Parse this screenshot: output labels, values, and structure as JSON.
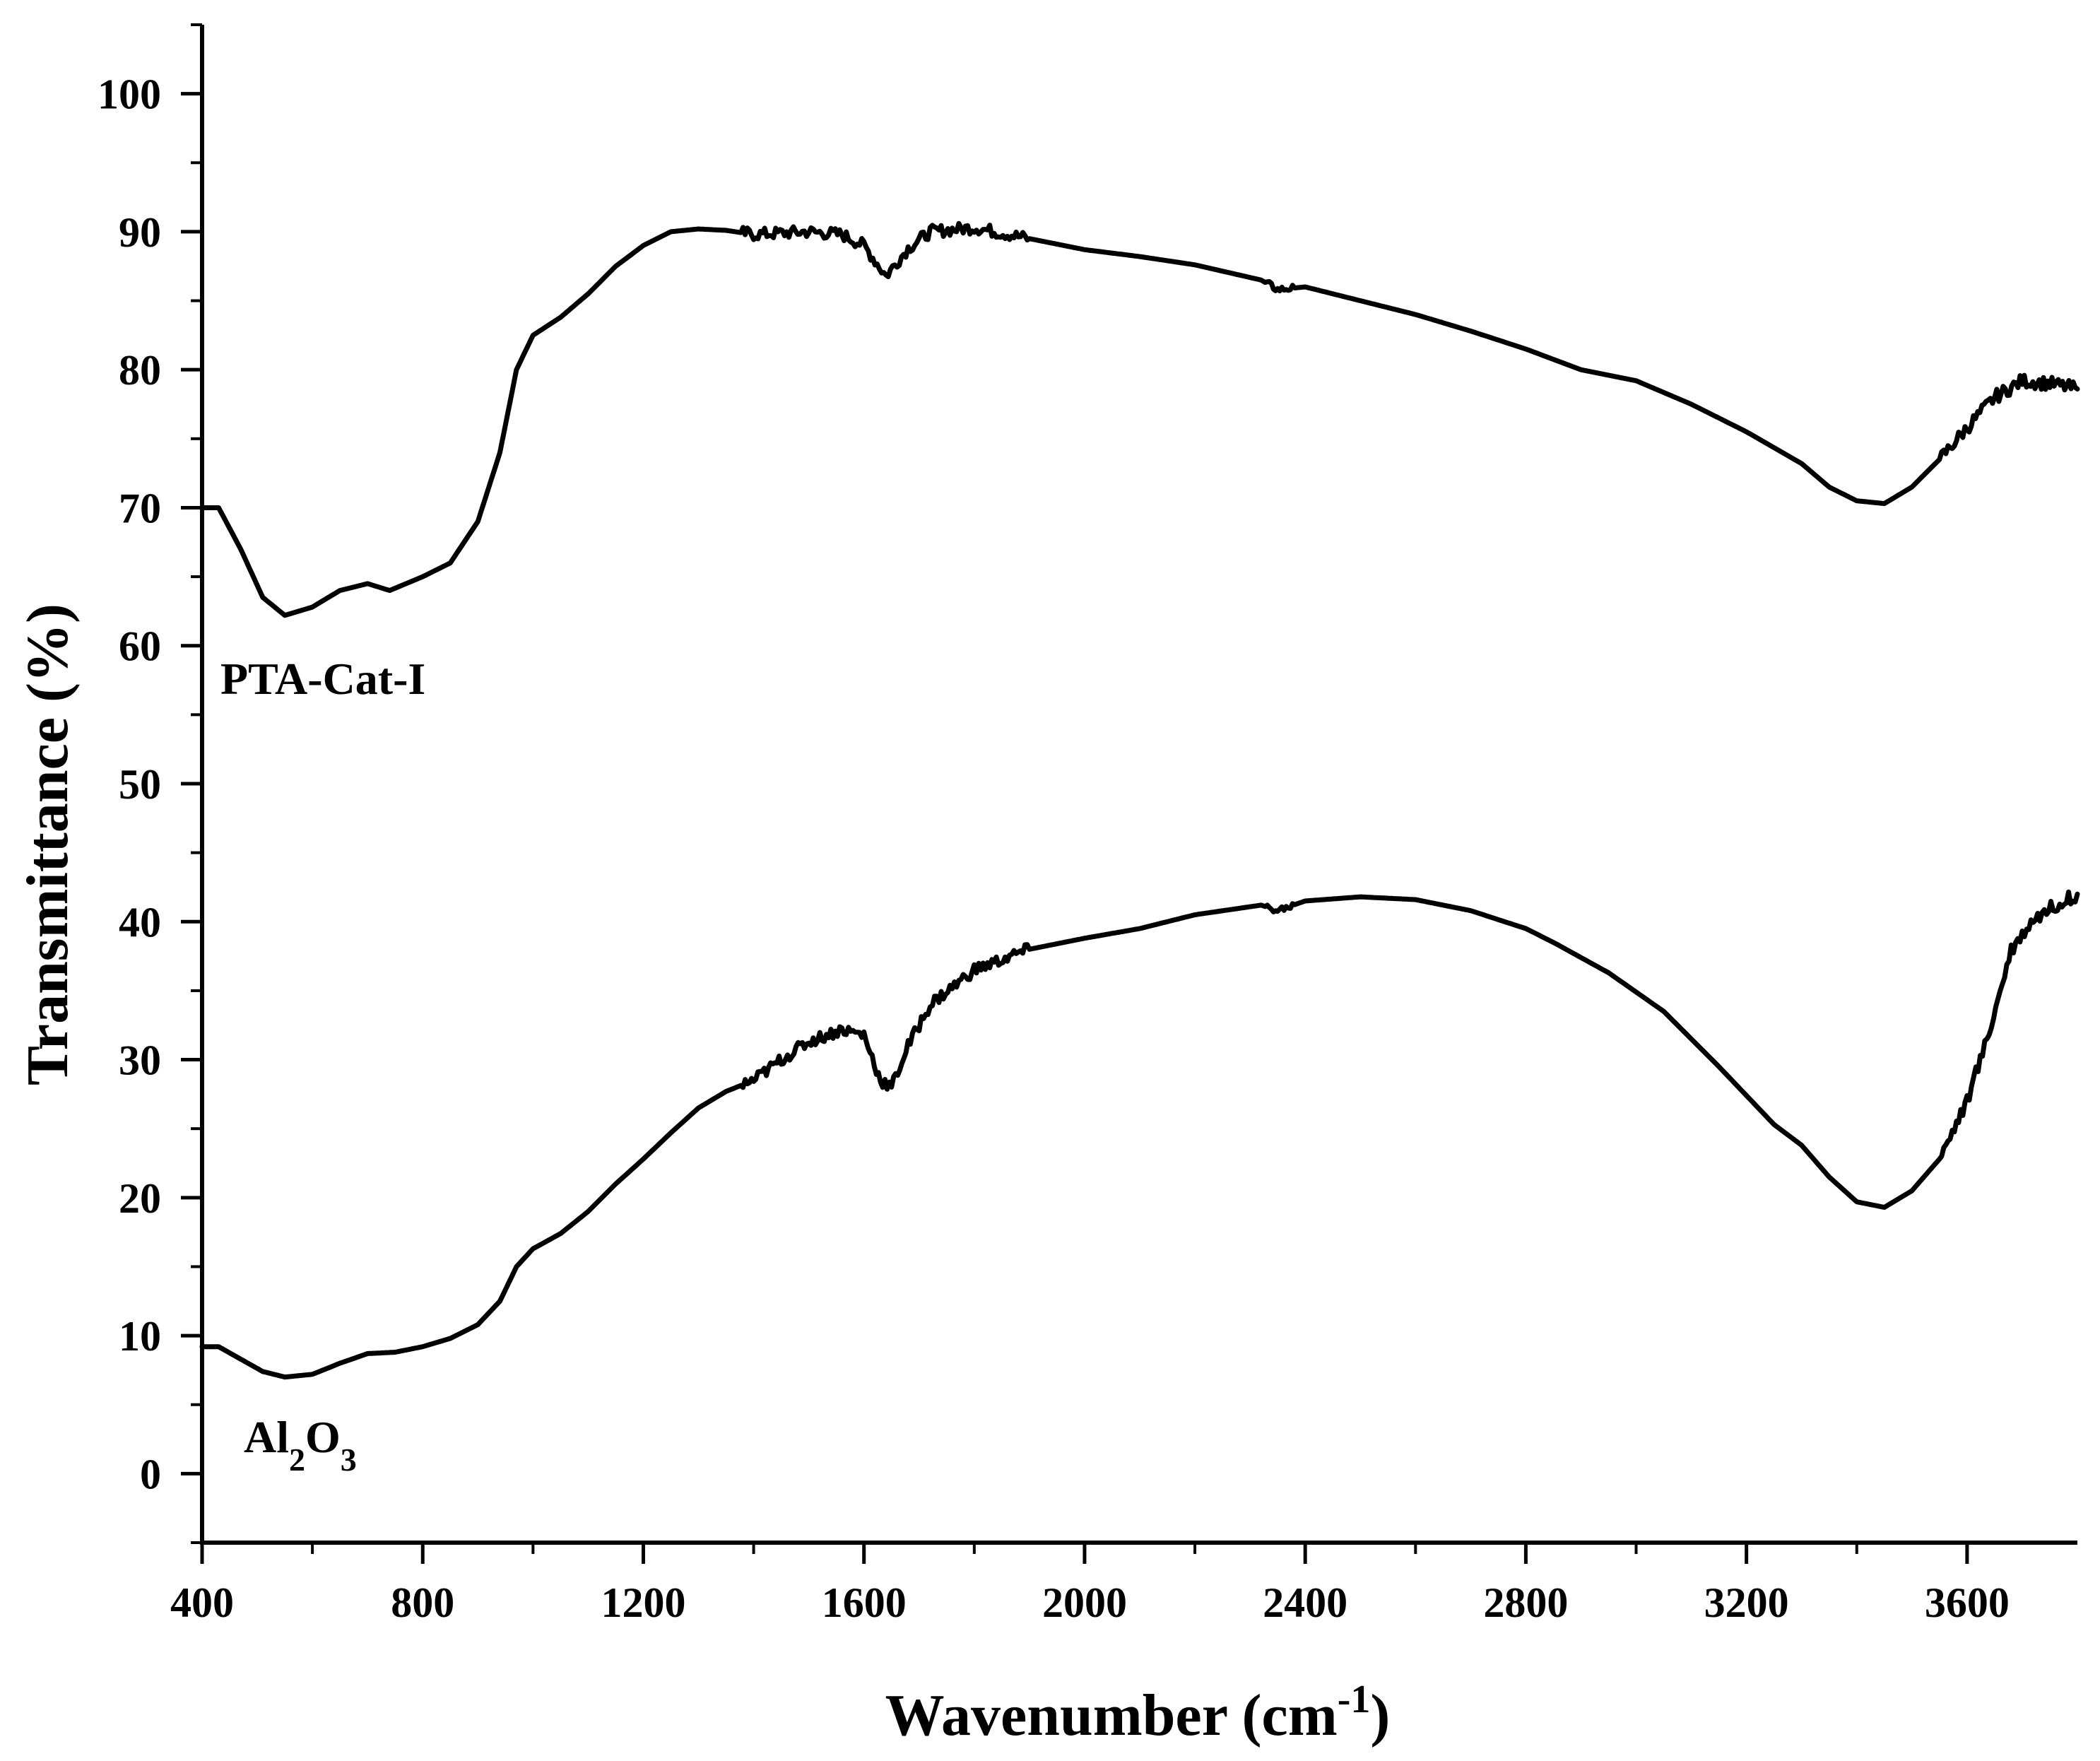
{
  "chart_data": {
    "type": "line",
    "title": "",
    "xlabel": "Wavenumber (cm",
    "xlabel_sup": "-1",
    "xlabel_end": ")",
    "ylabel": "Transmittance (%)",
    "xlim": [
      400,
      3800
    ],
    "ylim": [
      -5,
      105
    ],
    "xticks": [
      400,
      800,
      1200,
      1600,
      2000,
      2400,
      2800,
      3200,
      3600
    ],
    "xtick_labels": [
      "400",
      "800",
      "1200",
      "1600",
      "2000",
      "2400",
      "2800",
      "3200",
      "3600"
    ],
    "yticks": [
      0,
      10,
      20,
      30,
      40,
      50,
      60,
      70,
      80,
      90,
      100
    ],
    "ytick_labels": [
      "0",
      "10",
      "20",
      "30",
      "40",
      "50",
      "60",
      "70",
      "80",
      "90",
      "100"
    ],
    "grid": false,
    "legend": "none",
    "series": [
      {
        "name": "PTA-Cat-I",
        "label": "PTA-Cat-I",
        "color": "#000000",
        "points": [
          [
            400,
            70
          ],
          [
            430,
            70
          ],
          [
            470,
            67
          ],
          [
            510,
            63.5
          ],
          [
            550,
            62.2
          ],
          [
            600,
            62.8
          ],
          [
            650,
            64
          ],
          [
            700,
            64.5
          ],
          [
            740,
            64
          ],
          [
            800,
            65
          ],
          [
            850,
            66
          ],
          [
            900,
            69
          ],
          [
            940,
            74
          ],
          [
            970,
            80
          ],
          [
            1000,
            82.5
          ],
          [
            1050,
            83.8
          ],
          [
            1100,
            85.5
          ],
          [
            1150,
            87.5
          ],
          [
            1200,
            89
          ],
          [
            1250,
            90
          ],
          [
            1300,
            90.2
          ],
          [
            1350,
            90.1
          ],
          [
            1400,
            89.8
          ],
          [
            1500,
            90
          ],
          [
            1560,
            89.8
          ],
          [
            1600,
            89
          ],
          [
            1640,
            86.8
          ],
          [
            1680,
            88.8
          ],
          [
            1720,
            90
          ],
          [
            1800,
            90.3
          ],
          [
            1900,
            89.5
          ],
          [
            2000,
            88.7
          ],
          [
            2100,
            88.2
          ],
          [
            2200,
            87.6
          ],
          [
            2320,
            86.5
          ],
          [
            2350,
            85.8
          ],
          [
            2400,
            86
          ],
          [
            2500,
            85
          ],
          [
            2600,
            84
          ],
          [
            2700,
            82.8
          ],
          [
            2800,
            81.5
          ],
          [
            2900,
            80
          ],
          [
            3000,
            79.2
          ],
          [
            3100,
            77.5
          ],
          [
            3200,
            75.5
          ],
          [
            3300,
            73.2
          ],
          [
            3350,
            71.5
          ],
          [
            3400,
            70.5
          ],
          [
            3450,
            70.3
          ],
          [
            3500,
            71.5
          ],
          [
            3550,
            73.5
          ],
          [
            3600,
            75.8
          ],
          [
            3650,
            78
          ],
          [
            3700,
            79.2
          ],
          [
            3750,
            79
          ],
          [
            3800,
            78.6
          ]
        ]
      },
      {
        "name": "Al2O3",
        "label": "Al",
        "label_sub1": "2",
        "label_mid": "O",
        "label_sub2": "3",
        "color": "#000000",
        "points": [
          [
            400,
            9.2
          ],
          [
            430,
            9.2
          ],
          [
            470,
            8.3
          ],
          [
            510,
            7.4
          ],
          [
            550,
            7
          ],
          [
            600,
            7.2
          ],
          [
            650,
            8
          ],
          [
            700,
            8.7
          ],
          [
            750,
            8.8
          ],
          [
            800,
            9.2
          ],
          [
            850,
            9.8
          ],
          [
            900,
            10.8
          ],
          [
            940,
            12.5
          ],
          [
            970,
            15
          ],
          [
            1000,
            16.3
          ],
          [
            1050,
            17.4
          ],
          [
            1100,
            19
          ],
          [
            1150,
            21
          ],
          [
            1200,
            22.8
          ],
          [
            1250,
            24.7
          ],
          [
            1300,
            26.5
          ],
          [
            1350,
            27.7
          ],
          [
            1400,
            28.5
          ],
          [
            1450,
            30
          ],
          [
            1500,
            31.3
          ],
          [
            1560,
            32.2
          ],
          [
            1600,
            31.8
          ],
          [
            1630,
            28.5
          ],
          [
            1650,
            28
          ],
          [
            1680,
            31
          ],
          [
            1720,
            34
          ],
          [
            1800,
            36.5
          ],
          [
            1900,
            38
          ],
          [
            2000,
            38.8
          ],
          [
            2100,
            39.5
          ],
          [
            2200,
            40.5
          ],
          [
            2320,
            41.2
          ],
          [
            2350,
            40.8
          ],
          [
            2400,
            41.5
          ],
          [
            2500,
            41.8
          ],
          [
            2600,
            41.6
          ],
          [
            2700,
            40.8
          ],
          [
            2800,
            39.5
          ],
          [
            2850,
            38.5
          ],
          [
            2950,
            36.3
          ],
          [
            3050,
            33.5
          ],
          [
            3150,
            29.5
          ],
          [
            3250,
            25.3
          ],
          [
            3300,
            23.8
          ],
          [
            3350,
            21.5
          ],
          [
            3400,
            19.7
          ],
          [
            3450,
            19.3
          ],
          [
            3500,
            20.5
          ],
          [
            3550,
            22.8
          ],
          [
            3600,
            27
          ],
          [
            3640,
            32
          ],
          [
            3680,
            38
          ],
          [
            3720,
            40.2
          ],
          [
            3760,
            41.2
          ],
          [
            3800,
            42
          ]
        ]
      }
    ]
  }
}
